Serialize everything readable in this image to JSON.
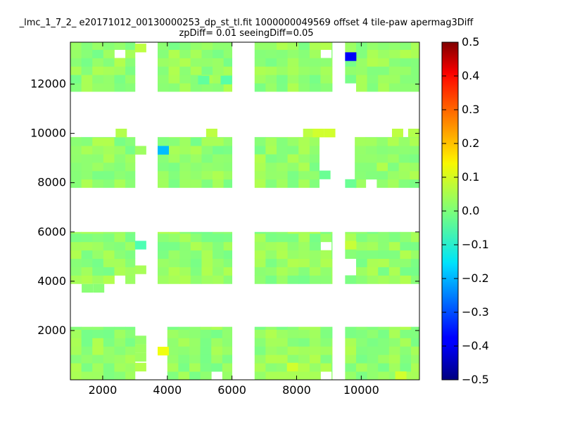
{
  "chart_data": {
    "type": "heatmap",
    "title_line1": "_lmc_1_7_2_ e20171012_00130000253_dp_st_tl.fit 1000000049569 offset 4 tile-paw apermag3Diff",
    "title_line2": "zpDiff= 0.01 seeingDiff=0.05",
    "xlabel": "",
    "ylabel": "",
    "xlim": [
      1000,
      11800
    ],
    "ylim": [
      0,
      13700
    ],
    "xticks": [
      2000,
      4000,
      6000,
      8000,
      10000
    ],
    "yticks": [
      2000,
      4000,
      6000,
      8000,
      10000,
      12000
    ],
    "xtick_labels": [
      "2000",
      "4000",
      "6000",
      "8000",
      "10000"
    ],
    "ytick_labels": [
      "2000",
      "4000",
      "6000",
      "8000",
      "10000",
      "12000"
    ],
    "colorbar": {
      "colormap": "jet",
      "range": [
        -0.5,
        0.5
      ],
      "ticks": [
        0.5,
        0.4,
        0.3,
        0.2,
        0.1,
        0.0,
        -0.1,
        -0.2,
        -0.3,
        -0.4,
        -0.5
      ],
      "tick_labels": [
        "0.5",
        "0.4",
        "0.3",
        "0.2",
        "0.1",
        "0.0",
        "−0.1",
        "−0.2",
        "−0.3",
        "−0.4",
        "−0.5"
      ]
    },
    "cell_size": 340,
    "base_value": 0.02,
    "detectors": [
      {
        "x": [
          1000,
          3000
        ],
        "y": [
          11700,
          13700
        ]
      },
      {
        "x": [
          3700,
          6000
        ],
        "y": [
          11700,
          13700
        ]
      },
      {
        "x": [
          6700,
          9100
        ],
        "y": [
          11700,
          13700
        ]
      },
      {
        "x": [
          9500,
          11800
        ],
        "y": [
          11700,
          13700
        ]
      },
      {
        "x": [
          1000,
          3000
        ],
        "y": [
          7800,
          9850
        ]
      },
      {
        "x": [
          3700,
          6000
        ],
        "y": [
          7800,
          9850
        ]
      },
      {
        "x": [
          6700,
          8700
        ],
        "y": [
          7800,
          9850
        ]
      },
      {
        "x": [
          9800,
          11800
        ],
        "y": [
          7800,
          9850
        ]
      },
      {
        "x": [
          1000,
          3000
        ],
        "y": [
          3900,
          6000
        ]
      },
      {
        "x": [
          3700,
          6000
        ],
        "y": [
          3900,
          6000
        ]
      },
      {
        "x": [
          6700,
          9100
        ],
        "y": [
          3900,
          6000
        ]
      },
      {
        "x": [
          9500,
          11800
        ],
        "y": [
          3900,
          6000
        ]
      },
      {
        "x": [
          1000,
          3000
        ],
        "y": [
          0,
          2150
        ]
      },
      {
        "x": [
          4000,
          6000
        ],
        "y": [
          0,
          2150
        ]
      },
      {
        "x": [
          6700,
          9100
        ],
        "y": [
          0,
          2150
        ]
      },
      {
        "x": [
          9500,
          11800
        ],
        "y": [
          0,
          2150
        ]
      }
    ],
    "extra_cells": [
      {
        "x": 3000,
        "y": 13300,
        "v": 0.06
      },
      {
        "x": 2400,
        "y": 9850,
        "v": 0.05
      },
      {
        "x": 5200,
        "y": 9850,
        "v": 0.06
      },
      {
        "x": 8200,
        "y": 9850,
        "v": 0.06
      },
      {
        "x": 8500,
        "y": 9850,
        "v": 0.08
      },
      {
        "x": 8850,
        "y": 9850,
        "v": 0.08
      },
      {
        "x": 10950,
        "y": 9850,
        "v": 0.06
      },
      {
        "x": 3000,
        "y": 9150,
        "v": 0.03
      },
      {
        "x": 3700,
        "y": 9150,
        "v": -0.19
      },
      {
        "x": 9500,
        "y": 7800,
        "v": -0.02
      },
      {
        "x": 8700,
        "y": 8150,
        "v": -0.02
      },
      {
        "x": 3000,
        "y": 5300,
        "v": -0.05
      },
      {
        "x": 3000,
        "y": 4300,
        "v": 0.04
      },
      {
        "x": 1350,
        "y": 3550,
        "v": 0.01
      },
      {
        "x": 1700,
        "y": 3550,
        "v": 0.01
      },
      {
        "x": 3000,
        "y": 1450,
        "v": 0.02
      },
      {
        "x": 3000,
        "y": 1100,
        "v": 0.03
      },
      {
        "x": 3000,
        "y": 750,
        "v": 0.03
      },
      {
        "x": 3000,
        "y": 350,
        "v": 0.05
      },
      {
        "x": 3700,
        "y": 1000,
        "v": 0.11
      }
    ],
    "removed_cells": [
      {
        "x": 2660,
        "y": 13360
      },
      {
        "x": 8760,
        "y": 13360
      },
      {
        "x": 9800,
        "y": 11700
      },
      {
        "x": 10300,
        "y": 7800
      },
      {
        "x": 8760,
        "y": 5320
      },
      {
        "x": 9500,
        "y": 4580
      },
      {
        "x": 9500,
        "y": 4240
      },
      {
        "x": 2660,
        "y": 3900
      },
      {
        "x": 5660,
        "y": 0
      },
      {
        "x": 8760,
        "y": 0
      }
    ],
    "special_cells": [
      {
        "x": 9500,
        "y": 12950,
        "v": -0.38
      },
      {
        "x": 4950,
        "y": 12000,
        "v": -0.03
      },
      {
        "x": 5650,
        "y": 12000,
        "v": -0.04
      },
      {
        "x": 9500,
        "y": 5300,
        "v": 0.07
      },
      {
        "x": 7700,
        "y": 350,
        "v": 0.08
      },
      {
        "x": 11050,
        "y": 0,
        "v": 0.08
      },
      {
        "x": 11450,
        "y": 9850,
        "v": 0.05
      }
    ]
  }
}
